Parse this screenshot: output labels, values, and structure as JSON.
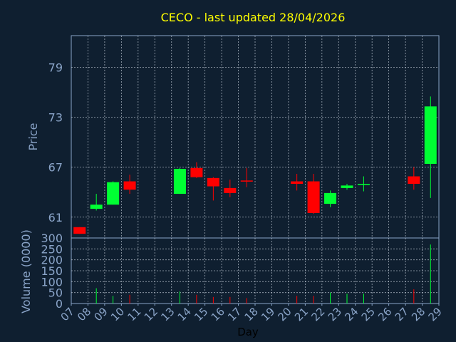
{
  "chart_data": {
    "type": "candlestick",
    "title": "CECO - last updated 28/04/2026",
    "xlabel": "Day",
    "ylabel_price": "Price",
    "ylabel_volume": "Volume (0000)",
    "x_ticks": [
      "07",
      "08",
      "09",
      "10",
      "11",
      "12",
      "13",
      "14",
      "15",
      "16",
      "17",
      "18",
      "19",
      "20",
      "21",
      "22",
      "23",
      "24",
      "25",
      "26",
      "27",
      "28",
      "29"
    ],
    "price_ticks": [
      61,
      67,
      73,
      79
    ],
    "price_ylim": [
      58.5,
      82.8
    ],
    "volume_ticks": [
      0,
      50,
      100,
      150,
      200,
      250,
      300
    ],
    "volume_ylim": [
      0,
      300
    ],
    "grid": true,
    "colors": {
      "background": "#0f1f30",
      "up": "#00ff33",
      "down": "#ff0000",
      "title": "#ffff00",
      "axis_text": "#8aa4c8",
      "grid": "#cfd8e3",
      "frame": "#8aa4c8"
    },
    "candles": [
      {
        "day": "07",
        "open": 59.8,
        "high": 59.8,
        "low": 59.0,
        "close": 59.0,
        "volume": 0
      },
      {
        "day": "08",
        "open": 62.0,
        "high": 63.8,
        "low": 61.8,
        "close": 62.5,
        "volume": 70
      },
      {
        "day": "09",
        "open": 62.5,
        "high": 65.3,
        "low": 62.5,
        "close": 65.2,
        "volume": 35
      },
      {
        "day": "10",
        "open": 65.3,
        "high": 66.1,
        "low": 63.8,
        "close": 64.3,
        "volume": 40
      },
      {
        "day": "13",
        "open": 63.8,
        "high": 66.9,
        "low": 63.8,
        "close": 66.8,
        "volume": 55
      },
      {
        "day": "14",
        "open": 66.9,
        "high": 67.6,
        "low": 65.7,
        "close": 65.8,
        "volume": 40
      },
      {
        "day": "15",
        "open": 65.7,
        "high": 65.8,
        "low": 63.0,
        "close": 64.7,
        "volume": 30
      },
      {
        "day": "16",
        "open": 64.5,
        "high": 65.5,
        "low": 63.4,
        "close": 63.9,
        "volume": 30
      },
      {
        "day": "17",
        "open": 65.4,
        "high": 66.9,
        "low": 64.6,
        "close": 65.3,
        "volume": 25
      },
      {
        "day": "20",
        "open": 65.3,
        "high": 66.2,
        "low": 64.2,
        "close": 65.0,
        "volume": 35
      },
      {
        "day": "21",
        "open": 65.3,
        "high": 66.2,
        "low": 61.4,
        "close": 61.5,
        "volume": 35
      },
      {
        "day": "22",
        "open": 62.6,
        "high": 64.2,
        "low": 62.2,
        "close": 63.9,
        "volume": 50
      },
      {
        "day": "23",
        "open": 64.5,
        "high": 65.0,
        "low": 64.3,
        "close": 64.8,
        "volume": 45
      },
      {
        "day": "24",
        "open": 64.9,
        "high": 65.9,
        "low": 64.1,
        "close": 65.0,
        "volume": 45
      },
      {
        "day": "27",
        "open": 65.9,
        "high": 67.0,
        "low": 64.3,
        "close": 65.0,
        "volume": 65
      },
      {
        "day": "28",
        "open": 67.4,
        "high": 75.5,
        "low": 63.3,
        "close": 74.3,
        "volume": 270
      }
    ]
  }
}
